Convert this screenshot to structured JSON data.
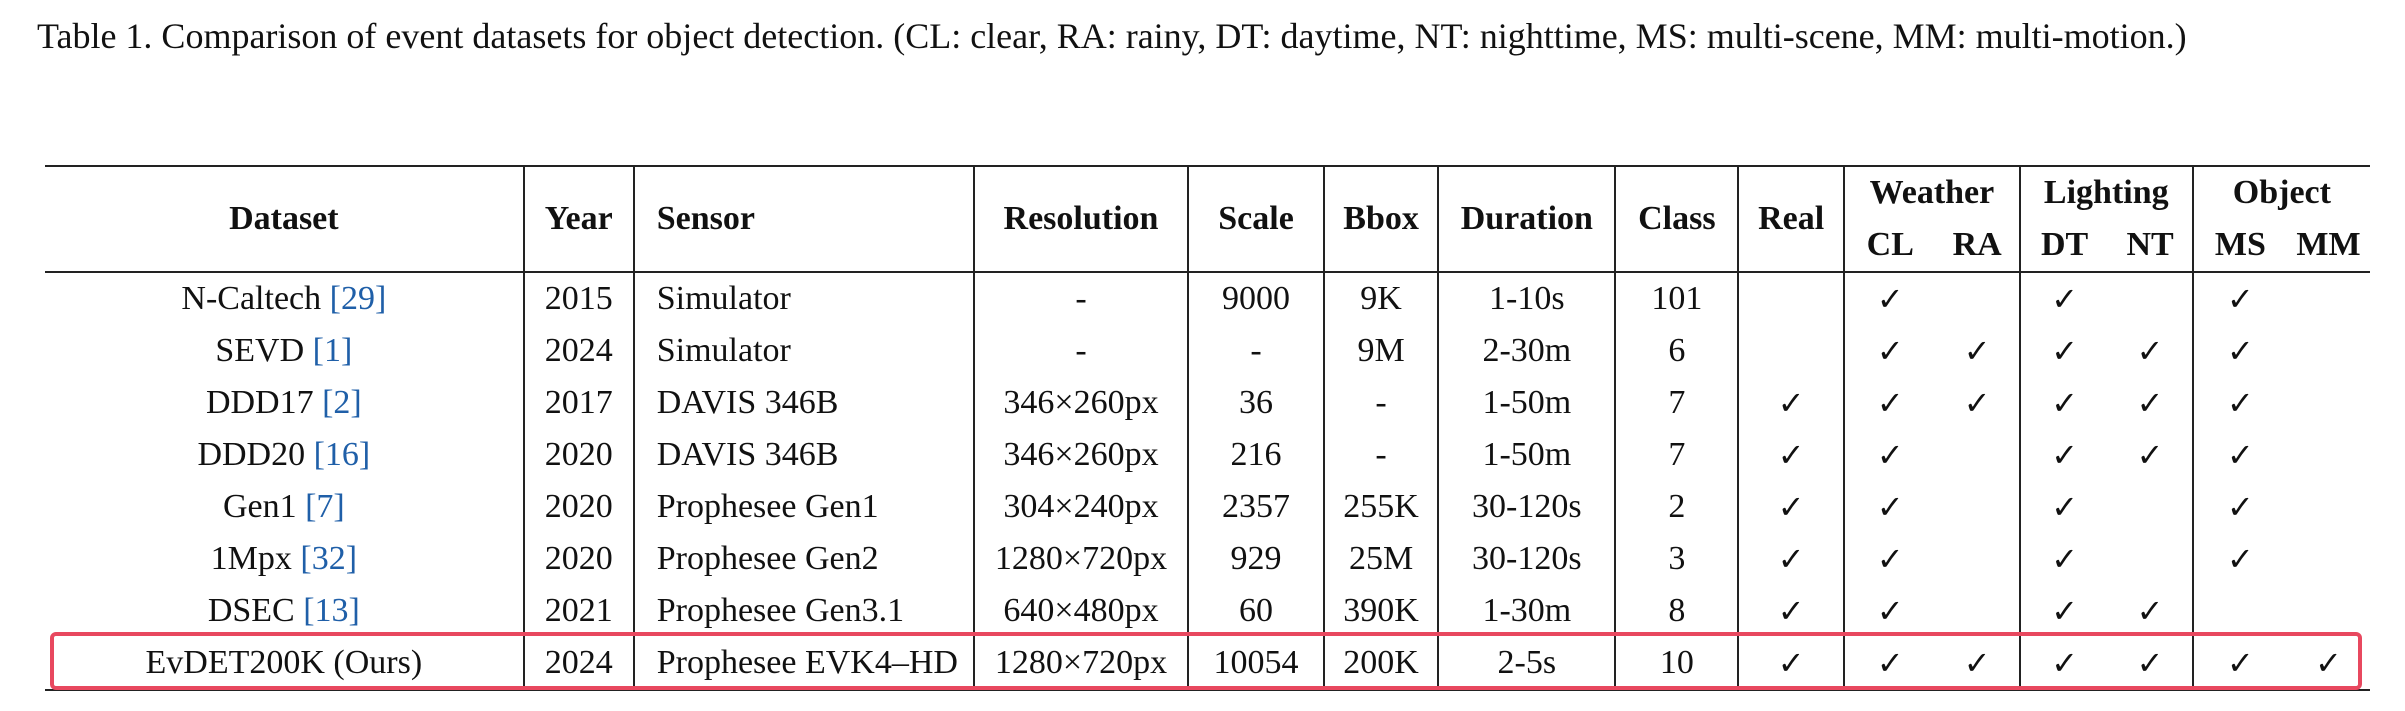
{
  "caption": "Table 1.  Comparison of event datasets for object detection.  (CL: clear, RA: rainy, DT: daytime, NT: nighttime, MS: multi-scene, MM: multi-motion.)",
  "headers": {
    "dataset": "Dataset",
    "year": "Year",
    "sensor": "Sensor",
    "resolution": "Resolution",
    "scale": "Scale",
    "bbox": "Bbox",
    "duration": "Duration",
    "class": "Class",
    "real": "Real",
    "weather": "Weather",
    "lighting": "Lighting",
    "object": "Object",
    "cl": "CL",
    "ra": "RA",
    "dt": "DT",
    "nt": "NT",
    "ms": "MS",
    "mm": "MM"
  },
  "check_mark": "✓",
  "rows": [
    {
      "name": "N-Caltech",
      "cite": "[29]",
      "year": "2015",
      "sensor": "Simulator",
      "resolution": "-",
      "scale": "9000",
      "bbox": "9K",
      "duration": "1-10s",
      "class": "101",
      "real": "",
      "cl": "✓",
      "ra": "",
      "dt": "✓",
      "nt": "",
      "ms": "✓",
      "mm": ""
    },
    {
      "name": "SEVD",
      "cite": "[1]",
      "year": "2024",
      "sensor": "Simulator",
      "resolution": "-",
      "scale": "-",
      "bbox": "9M",
      "duration": "2-30m",
      "class": "6",
      "real": "",
      "cl": "✓",
      "ra": "✓",
      "dt": "✓",
      "nt": "✓",
      "ms": "✓",
      "mm": ""
    },
    {
      "name": "DDD17",
      "cite": "[2]",
      "year": "2017",
      "sensor": "DAVIS 346B",
      "resolution": "346×260px",
      "scale": "36",
      "bbox": "-",
      "duration": "1-50m",
      "class": "7",
      "real": "✓",
      "cl": "✓",
      "ra": "✓",
      "dt": "✓",
      "nt": "✓",
      "ms": "✓",
      "mm": ""
    },
    {
      "name": "DDD20",
      "cite": "[16]",
      "year": "2020",
      "sensor": "DAVIS 346B",
      "resolution": "346×260px",
      "scale": "216",
      "bbox": "-",
      "duration": "1-50m",
      "class": "7",
      "real": "✓",
      "cl": "✓",
      "ra": "",
      "dt": "✓",
      "nt": "✓",
      "ms": "✓",
      "mm": ""
    },
    {
      "name": "Gen1",
      "cite": "[7]",
      "year": "2020",
      "sensor": "Prophesee Gen1",
      "resolution": "304×240px",
      "scale": "2357",
      "bbox": "255K",
      "duration": "30-120s",
      "class": "2",
      "real": "✓",
      "cl": "✓",
      "ra": "",
      "dt": "✓",
      "nt": "",
      "ms": "✓",
      "mm": ""
    },
    {
      "name": "1Mpx",
      "cite": "[32]",
      "year": "2020",
      "sensor": "Prophesee Gen2",
      "resolution": "1280×720px",
      "scale": "929",
      "bbox": "25M",
      "duration": "30-120s",
      "class": "3",
      "real": "✓",
      "cl": "✓",
      "ra": "",
      "dt": "✓",
      "nt": "",
      "ms": "✓",
      "mm": ""
    },
    {
      "name": "DSEC",
      "cite": "[13]",
      "year": "2021",
      "sensor": "Prophesee Gen3.1",
      "resolution": "640×480px",
      "scale": "60",
      "bbox": "390K",
      "duration": "1-30m",
      "class": "8",
      "real": "✓",
      "cl": "✓",
      "ra": "",
      "dt": "✓",
      "nt": "✓",
      "ms": "",
      "mm": ""
    },
    {
      "name": "EvDET200K (Ours)",
      "cite": "",
      "year": "2024",
      "sensor": "Prophesee EVK4–HD",
      "resolution": "1280×720px",
      "scale": "10054",
      "bbox": "200K",
      "duration": "2-5s",
      "class": "10",
      "real": "✓",
      "cl": "✓",
      "ra": "✓",
      "dt": "✓",
      "nt": "✓",
      "ms": "✓",
      "mm": "✓"
    }
  ],
  "colors": {
    "highlight": "#e8485f",
    "citation": "#1f5fa8"
  }
}
